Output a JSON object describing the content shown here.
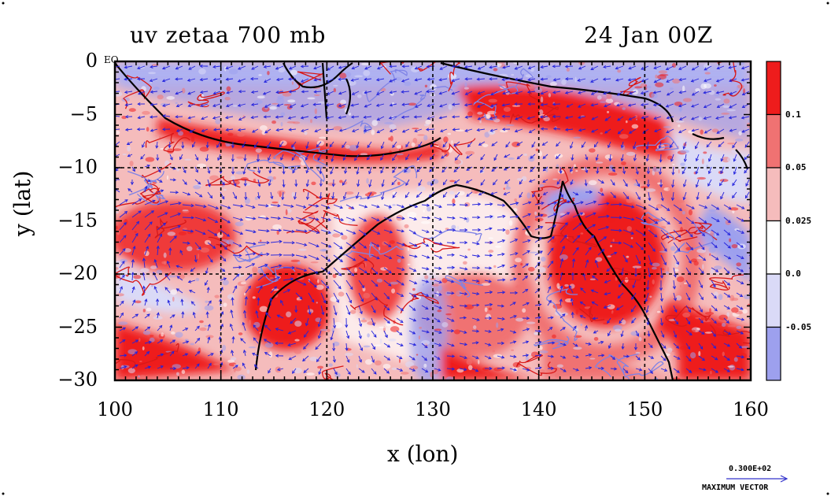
{
  "title_left": "uv zetaa 700 mb",
  "title_right": "24 Jan 00Z",
  "eq_label": "EQ",
  "axes": {
    "xlabel": "x (lon)",
    "ylabel": "y (lat)",
    "xlim": [
      100,
      160
    ],
    "ylim": [
      -30,
      0
    ],
    "xticks": [
      "100",
      "110",
      "120",
      "130",
      "140",
      "150",
      "160"
    ],
    "yticks": [
      "0",
      "−5",
      "−10",
      "−15",
      "−20",
      "−25",
      "−30"
    ],
    "grid_lon": [
      110,
      120,
      130,
      140,
      150
    ],
    "grid_lat": [
      -10,
      -20
    ]
  },
  "colorbar": {
    "labels": [
      "0.1",
      "0.05",
      "0.025",
      "0.0",
      "-0.05"
    ],
    "colors": [
      "#ee1c1c",
      "#f07272",
      "#f5bcbc",
      "#ffffff",
      "#dadaf7",
      "#9da0ee"
    ]
  },
  "max_vector": {
    "value": "0.300E+02",
    "label": "MAXIMUM VECTOR"
  },
  "palette": {
    "strong_pos": "#ee1c1c",
    "mid_pos": "#f07272",
    "weak_pos": "#f5bcbc",
    "neutral": "#ffffff",
    "weak_neg": "#dadaf7",
    "strong_neg": "#9da0ee",
    "vectors": "#2222dd",
    "coast": "#000000"
  }
}
